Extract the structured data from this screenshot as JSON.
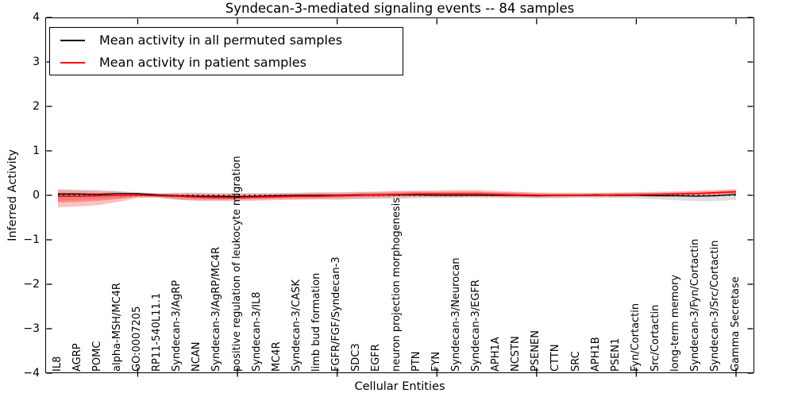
{
  "title": "Syndecan-3-mediated signaling events -- 84 samples",
  "legend": {
    "entries": [
      {
        "label": "Mean activity in all permuted samples",
        "color": "#000000"
      },
      {
        "label": "Mean activity in patient samples",
        "color": "#ff0000"
      }
    ]
  },
  "axes": {
    "y": {
      "label": "Inferred Activity",
      "range": [
        -4,
        4
      ],
      "ticks": [
        {
          "label": "4",
          "value": 4
        },
        {
          "label": "3",
          "value": 3
        },
        {
          "label": "2",
          "value": 2
        },
        {
          "label": "1",
          "value": 1
        },
        {
          "label": "0",
          "value": 0
        },
        {
          "label": "−1",
          "value": -1
        },
        {
          "label": "−2",
          "value": -2
        },
        {
          "label": "−3",
          "value": -3
        },
        {
          "label": "−4",
          "value": -4
        }
      ]
    },
    "x": {
      "label": "Cellular Entities",
      "major_tick_every": 5
    }
  },
  "chart_data": {
    "type": "line",
    "title": "Syndecan-3-mediated signaling events -- 84 samples",
    "xlabel": "Cellular Entities",
    "ylabel": "Inferred Activity",
    "ylim": [
      -4,
      4
    ],
    "grid": false,
    "legend_position": "upper left",
    "categories": [
      "IL8",
      "AGRP",
      "POMC",
      "alpha-MSH/MC4R",
      "GO:0007205",
      "RP11-540L11.1",
      "Syndecan-3/AgRP",
      "NCAN",
      "Syndecan-3/AgRP/MC4R",
      "positive regulation of leukocyte migration",
      "Syndecan-3/IL8",
      "MC4R",
      "Syndecan-3/CASK",
      "limb bud formation",
      "FGFR/FGF/Syndecan-3",
      "SDC3",
      "EGFR",
      "neuron projection morphogenesis",
      "PTN",
      "FYN",
      "Syndecan-3/Neurocan",
      "Syndecan-3/EGFR",
      "APH1A",
      "NCSTN",
      "PSENEN",
      "CTTN",
      "SRC",
      "APH1B",
      "PSEN1",
      "Fyn/Cortactin",
      "Src/Cortactin",
      "long-term memory",
      "Syndecan-3/Fyn/Cortactin",
      "Syndecan-3/Src/Cortactin",
      "Gamma Secretase"
    ],
    "zero_line": {
      "value": 0,
      "style": "dotted",
      "color": "#000000"
    },
    "series": [
      {
        "name": "Mean activity in all permuted samples",
        "color": "#000000",
        "band_color": "#a8a8a8",
        "values": [
          0.03,
          0.03,
          0.02,
          0.04,
          0.04,
          0.01,
          -0.01,
          -0.02,
          -0.02,
          -0.03,
          -0.02,
          -0.01,
          0,
          0,
          0,
          0.01,
          0.01,
          0.01,
          0.01,
          0,
          0,
          0,
          0,
          0,
          -0.01,
          0,
          0,
          0.01,
          0,
          0,
          -0.01,
          -0.01,
          -0.02,
          -0.01,
          0.02
        ],
        "band_low": [
          -0.12,
          -0.1,
          -0.09,
          -0.07,
          -0.04,
          -0.05,
          -0.1,
          -0.12,
          -0.11,
          -0.1,
          -0.09,
          -0.08,
          -0.08,
          -0.09,
          -0.1,
          -0.09,
          -0.08,
          -0.08,
          -0.07,
          -0.06,
          -0.06,
          -0.06,
          -0.06,
          -0.06,
          -0.07,
          -0.07,
          -0.06,
          -0.06,
          -0.06,
          -0.07,
          -0.09,
          -0.11,
          -0.13,
          -0.13,
          -0.1
        ],
        "band_high": [
          0.14,
          0.13,
          0.12,
          0.1,
          0.07,
          0.05,
          0.06,
          0.06,
          0.05,
          0.05,
          0.05,
          0.05,
          0.06,
          0.07,
          0.07,
          0.08,
          0.08,
          0.09,
          0.09,
          0.08,
          0.08,
          0.08,
          0.07,
          0.07,
          0.06,
          0.06,
          0.06,
          0.06,
          0.06,
          0.06,
          0.06,
          0.06,
          0.06,
          0.06,
          0.07
        ]
      },
      {
        "name": "Mean activity in patient samples",
        "color": "#ff0000",
        "band_color": "#ff3333",
        "values": [
          -0.02,
          -0.02,
          -0.01,
          0,
          0.01,
          -0.01,
          -0.02,
          -0.04,
          -0.05,
          -0.05,
          -0.04,
          -0.03,
          -0.02,
          -0.02,
          -0.01,
          0,
          0.01,
          0.02,
          0.03,
          0.03,
          0.03,
          0.03,
          0.02,
          0.01,
          0,
          0,
          0,
          0,
          0.01,
          0.01,
          0.02,
          0.03,
          0.04,
          0.06,
          0.08
        ],
        "band_low": [
          -0.27,
          -0.25,
          -0.22,
          -0.15,
          -0.06,
          -0.05,
          -0.1,
          -0.12,
          -0.13,
          -0.13,
          -0.12,
          -0.11,
          -0.1,
          -0.09,
          -0.08,
          -0.07,
          -0.06,
          -0.05,
          -0.04,
          -0.04,
          -0.04,
          -0.03,
          -0.04,
          -0.05,
          -0.05,
          -0.05,
          -0.04,
          -0.04,
          -0.04,
          -0.03,
          -0.03,
          -0.02,
          -0.01,
          0,
          0.02
        ],
        "band_high": [
          0.12,
          0.11,
          0.1,
          0.08,
          0.05,
          0.04,
          0.05,
          0.05,
          0.04,
          0.04,
          0.04,
          0.05,
          0.05,
          0.06,
          0.06,
          0.07,
          0.08,
          0.1,
          0.11,
          0.11,
          0.12,
          0.12,
          0.1,
          0.08,
          0.06,
          0.05,
          0.05,
          0.05,
          0.06,
          0.07,
          0.08,
          0.09,
          0.11,
          0.12,
          0.14
        ]
      }
    ]
  }
}
